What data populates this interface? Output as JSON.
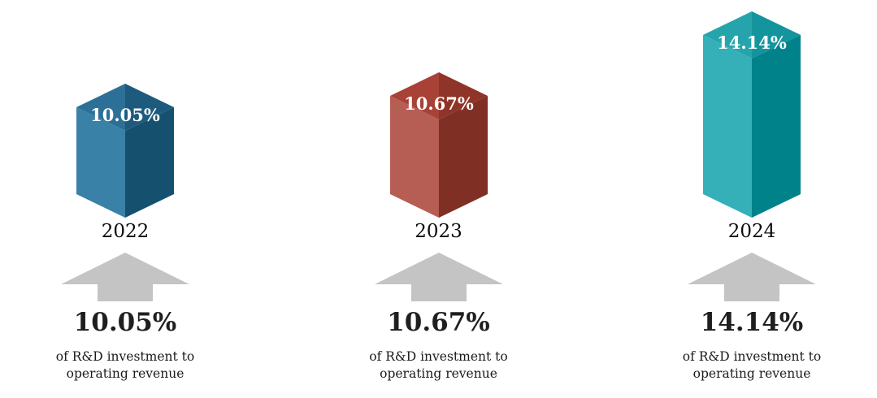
{
  "page": {
    "background": "#ffffff"
  },
  "chart_data": {
    "type": "bar",
    "style": "3d-isometric-cuboid-bars",
    "title": "",
    "categories": [
      "2022",
      "2023",
      "2024"
    ],
    "values": [
      10.05,
      10.67,
      14.14
    ],
    "value_labels": [
      "10.05%",
      "10.67%",
      "14.14%"
    ],
    "unit": "%",
    "series_description": "of R&D investment to operating revenue",
    "grid": false,
    "legend": "none",
    "axis_labels": "none",
    "bar_colors": [
      "#2d7097",
      "#a84136",
      "#26a4ac"
    ]
  },
  "arrow": {
    "name": "up-arrow",
    "color": "#c4c4c4"
  },
  "columns": [
    {
      "year": "2022",
      "value_label": "10.05%",
      "description": "of R&D investment to operating revenue",
      "colors": {
        "topLeft": "#2d7097",
        "topRight": "#1e5a7d",
        "left": "#3a81a8",
        "right": "#15516f"
      }
    },
    {
      "year": "2023",
      "value_label": "10.67%",
      "description": "of R&D investment to operating revenue",
      "colors": {
        "topLeft": "#a84136",
        "topRight": "#8f3428",
        "left": "#b65e53",
        "right": "#7f2f24"
      }
    },
    {
      "year": "2024",
      "value_label": "14.14%",
      "description": "of R&D investment to operating revenue",
      "colors": {
        "topLeft": "#26a4ac",
        "topRight": "#14949c",
        "left": "#35b0b8",
        "right": "#00828b"
      }
    }
  ]
}
